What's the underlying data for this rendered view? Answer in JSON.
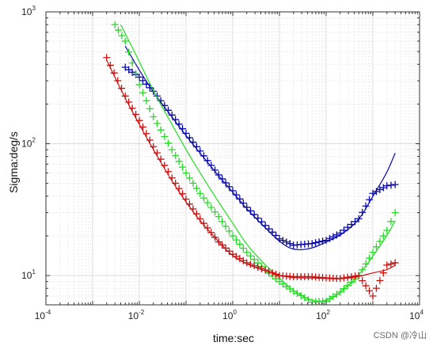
{
  "watermark": "CSDN @冷山",
  "chart_data": {
    "type": "line",
    "xscale": "log",
    "yscale": "log",
    "xlim": [
      0.0001,
      10000
    ],
    "ylim": [
      6,
      1000
    ],
    "grid": true,
    "xlabel": "time:sec",
    "ylabel": "Sigma:deg/s",
    "xticks": [
      {
        "base": "10",
        "exp": "-4"
      },
      {
        "base": "10",
        "exp": "-2"
      },
      {
        "base": "10",
        "exp": "0"
      },
      {
        "base": "10",
        "exp": "2"
      },
      {
        "base": "10",
        "exp": "4"
      }
    ],
    "yticks": [
      {
        "base": "10",
        "exp": "1"
      },
      {
        "base": "10",
        "exp": "2"
      },
      {
        "base": "10",
        "exp": "3"
      }
    ],
    "series": [
      {
        "color": "#0a0aa8",
        "markers": [
          [
            0.005,
            380
          ],
          [
            0.01,
            320
          ],
          [
            0.02,
            250
          ],
          [
            0.05,
            165
          ],
          [
            0.1,
            120
          ],
          [
            0.2,
            88
          ],
          [
            0.5,
            58
          ],
          [
            1,
            44
          ],
          [
            2,
            33
          ],
          [
            5,
            24
          ],
          [
            10,
            19
          ],
          [
            20,
            17
          ],
          [
            50,
            17.5
          ],
          [
            100,
            18.5
          ],
          [
            200,
            21
          ],
          [
            500,
            27
          ],
          [
            1000,
            42
          ],
          [
            2000,
            48
          ],
          [
            3000,
            49
          ]
        ],
        "line": [
          [
            0.005,
            550
          ],
          [
            0.01,
            360
          ],
          [
            0.02,
            245
          ],
          [
            0.05,
            160
          ],
          [
            0.1,
            115
          ],
          [
            0.2,
            85
          ],
          [
            0.5,
            57
          ],
          [
            1,
            43
          ],
          [
            2,
            32
          ],
          [
            5,
            23
          ],
          [
            10,
            18
          ],
          [
            20,
            15.5
          ],
          [
            50,
            16
          ],
          [
            100,
            18
          ],
          [
            200,
            20
          ],
          [
            500,
            26
          ],
          [
            1000,
            40
          ],
          [
            2000,
            60
          ],
          [
            3000,
            85
          ]
        ]
      },
      {
        "color": "#22dd22",
        "markers": [
          [
            0.003,
            800
          ],
          [
            0.005,
            600
          ],
          [
            0.01,
            280
          ],
          [
            0.02,
            160
          ],
          [
            0.05,
            90
          ],
          [
            0.1,
            60
          ],
          [
            0.2,
            42
          ],
          [
            0.5,
            28
          ],
          [
            1,
            20
          ],
          [
            2,
            15
          ],
          [
            5,
            11
          ],
          [
            10,
            9
          ],
          [
            20,
            7.6
          ],
          [
            50,
            6.3
          ],
          [
            100,
            6.4
          ],
          [
            200,
            7.5
          ],
          [
            500,
            10
          ],
          [
            1000,
            15
          ],
          [
            2000,
            22
          ],
          [
            3000,
            30
          ]
        ],
        "line": [
          [
            0.004,
            800
          ],
          [
            0.01,
            420
          ],
          [
            0.02,
            250
          ],
          [
            0.05,
            140
          ],
          [
            0.1,
            90
          ],
          [
            0.2,
            60
          ],
          [
            0.5,
            36
          ],
          [
            1,
            25
          ],
          [
            2,
            17
          ],
          [
            5,
            12
          ],
          [
            10,
            9.6
          ],
          [
            20,
            7.6
          ],
          [
            50,
            6.4
          ],
          [
            100,
            6.4
          ],
          [
            200,
            7.4
          ],
          [
            500,
            10
          ],
          [
            1000,
            14
          ],
          [
            2000,
            20
          ],
          [
            3000,
            26
          ]
        ]
      },
      {
        "color": "#cc1111",
        "markers": [
          [
            0.002,
            450
          ],
          [
            0.005,
            230
          ],
          [
            0.01,
            150
          ],
          [
            0.02,
            95
          ],
          [
            0.05,
            55
          ],
          [
            0.1,
            38
          ],
          [
            0.2,
            27
          ],
          [
            0.5,
            18
          ],
          [
            1,
            14.5
          ],
          [
            2,
            12.5
          ],
          [
            5,
            11
          ],
          [
            10,
            10
          ],
          [
            20,
            9.8
          ],
          [
            50,
            9.8
          ],
          [
            100,
            9.6
          ],
          [
            200,
            9.5
          ],
          [
            500,
            10
          ],
          [
            1000,
            7
          ],
          [
            2000,
            12
          ],
          [
            3000,
            12.5
          ]
        ],
        "line": [
          [
            0.002,
            430
          ],
          [
            0.005,
            220
          ],
          [
            0.01,
            140
          ],
          [
            0.02,
            90
          ],
          [
            0.05,
            52
          ],
          [
            0.1,
            36
          ],
          [
            0.2,
            26
          ],
          [
            0.5,
            18
          ],
          [
            1,
            14
          ],
          [
            2,
            12.2
          ],
          [
            5,
            10.8
          ],
          [
            10,
            10
          ],
          [
            20,
            9.6
          ],
          [
            50,
            9.6
          ],
          [
            100,
            9.5
          ],
          [
            200,
            9.4
          ],
          [
            500,
            9.8
          ],
          [
            1000,
            10.5
          ],
          [
            2000,
            11
          ],
          [
            3000,
            12
          ]
        ]
      }
    ]
  }
}
